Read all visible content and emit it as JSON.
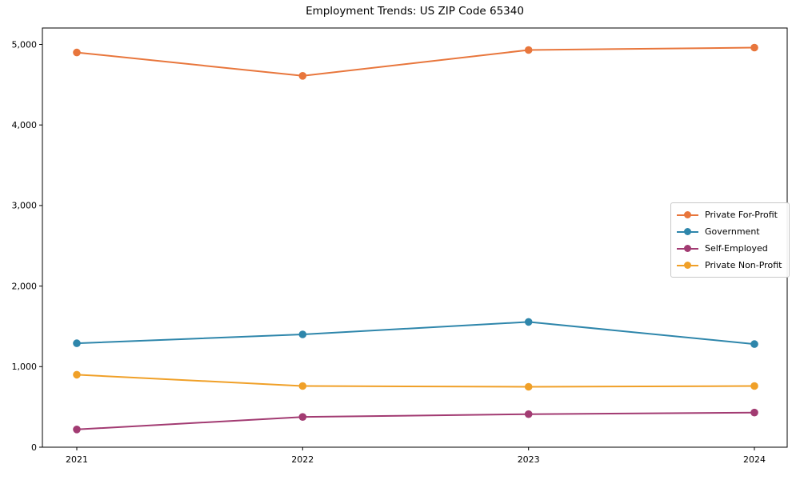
{
  "title": "Employment Trends: US ZIP Code 65340",
  "chart_data": {
    "type": "line",
    "title": "Employment Trends: US ZIP Code 65340",
    "x": [
      "2021",
      "2022",
      "2023",
      "2024"
    ],
    "xlabel": "",
    "ylabel": "",
    "ylim": [
      0,
      5000
    ],
    "yticks": [
      0,
      1000,
      2000,
      3000,
      4000,
      5000
    ],
    "ytick_labels": [
      "0",
      "1,000",
      "2,000",
      "3,000",
      "4,000",
      "5,000"
    ],
    "xtick_labels": [
      "2021",
      "2022",
      "2023",
      "2024"
    ],
    "grid": false,
    "legend_position": "center-right",
    "marker": "circle",
    "series": [
      {
        "name": "Private For-Profit",
        "color": "#E8763C",
        "values": [
          4900,
          4610,
          4930,
          4960
        ]
      },
      {
        "name": "Government",
        "color": "#2E86AB",
        "values": [
          1290,
          1400,
          1555,
          1280
        ]
      },
      {
        "name": "Self-Employed",
        "color": "#A23B72",
        "values": [
          220,
          375,
          410,
          430
        ]
      },
      {
        "name": "Private Non-Profit",
        "color": "#F0A028",
        "values": [
          900,
          760,
          750,
          760
        ]
      }
    ]
  }
}
